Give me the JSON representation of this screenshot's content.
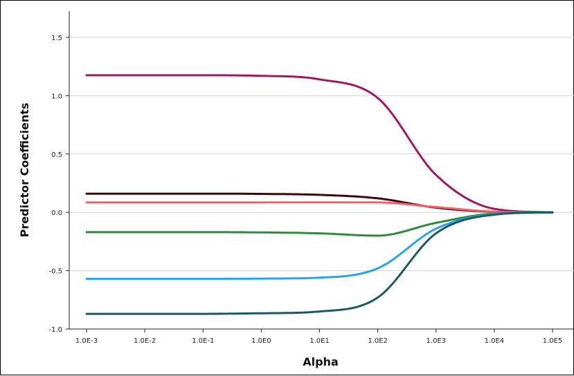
{
  "chart_data": {
    "type": "line",
    "title": "",
    "xlabel": "Alpha",
    "ylabel": "Predictor Coefficients",
    "x_scale": "log10",
    "x": [
      0.001,
      0.01,
      0.1,
      1,
      10,
      100,
      1000,
      10000,
      100000
    ],
    "x_tick_labels": [
      "1.0E-3",
      "1.0E-2",
      "1.0E-1",
      "1.0E0",
      "1.0E1",
      "1.0E2",
      "1.0E3",
      "1.0E4",
      "1.0E5"
    ],
    "y_ticks": [
      1.5,
      1.0,
      0.5,
      0.0,
      -0.5,
      -1.0
    ],
    "y_tick_labels": [
      "1.5",
      "1.0",
      "0.5",
      "0.0",
      "-0.5",
      "-1.0"
    ],
    "ylim": [
      -1.0,
      1.5
    ],
    "grid": "horizontal",
    "legend": "none",
    "series": [
      {
        "color": "#a0195e",
        "values": [
          1.175,
          1.175,
          1.175,
          1.17,
          1.14,
          0.98,
          0.32,
          0.03,
          0.0
        ]
      },
      {
        "color": "#3a0a0a",
        "values": [
          0.16,
          0.16,
          0.16,
          0.158,
          0.15,
          0.12,
          0.04,
          0.005,
          0.0
        ]
      },
      {
        "color": "#f0606a",
        "values": [
          0.085,
          0.085,
          0.085,
          0.085,
          0.086,
          0.085,
          0.045,
          0.006,
          0.0
        ]
      },
      {
        "color": "#2e8b3a",
        "values": [
          -0.17,
          -0.17,
          -0.17,
          -0.172,
          -0.18,
          -0.2,
          -0.09,
          -0.01,
          0.0
        ]
      },
      {
        "color": "#2aa3ee",
        "values": [
          -0.57,
          -0.57,
          -0.57,
          -0.568,
          -0.56,
          -0.48,
          -0.14,
          -0.015,
          0.0
        ]
      },
      {
        "color": "#1a5a5e",
        "values": [
          -0.87,
          -0.87,
          -0.87,
          -0.865,
          -0.85,
          -0.73,
          -0.18,
          -0.02,
          0.0
        ]
      }
    ]
  }
}
